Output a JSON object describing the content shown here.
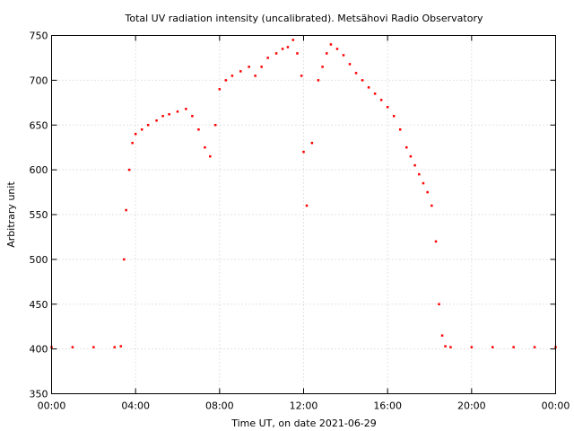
{
  "chart_data": {
    "type": "scatter",
    "title": "Total UV radiation intensity (uncalibrated). Metsähovi Radio Observatory",
    "xlabel": "Time UT, on date 2021-06-29",
    "ylabel": "Arbitrary unit",
    "xlim": [
      0,
      24
    ],
    "ylim": [
      350,
      750
    ],
    "grid": true,
    "x_ticks": [
      {
        "value": 0,
        "label": "00:00"
      },
      {
        "value": 4,
        "label": "04:00"
      },
      {
        "value": 8,
        "label": "08:00"
      },
      {
        "value": 12,
        "label": "12:00"
      },
      {
        "value": 16,
        "label": "16:00"
      },
      {
        "value": 20,
        "label": "20:00"
      },
      {
        "value": 24,
        "label": "00:00"
      }
    ],
    "y_ticks": [
      350,
      400,
      450,
      500,
      550,
      600,
      650,
      700,
      750
    ],
    "series": [
      {
        "color": "#ff0000",
        "x": [
          0.0,
          1.0,
          2.0,
          3.0,
          3.3,
          3.45,
          3.55,
          3.7,
          3.85,
          4.0,
          4.3,
          4.6,
          5.0,
          5.3,
          5.6,
          6.0,
          6.4,
          6.7,
          7.0,
          7.3,
          7.55,
          7.8,
          8.0,
          8.3,
          8.6,
          9.0,
          9.4,
          9.7,
          10.0,
          10.3,
          10.7,
          11.0,
          11.25,
          11.5,
          11.7,
          11.9,
          12.0,
          12.15,
          12.4,
          12.7,
          12.9,
          13.1,
          13.3,
          13.6,
          13.9,
          14.2,
          14.5,
          14.8,
          15.1,
          15.4,
          15.7,
          16.0,
          16.3,
          16.6,
          16.9,
          17.1,
          17.3,
          17.5,
          17.7,
          17.9,
          18.1,
          18.3,
          18.45,
          18.6,
          18.75,
          19.0,
          20.0,
          21.0,
          22.0,
          23.0,
          24.0
        ],
        "y": [
          402,
          402,
          402,
          402,
          403,
          500,
          555,
          600,
          630,
          640,
          645,
          650,
          655,
          660,
          662,
          665,
          668,
          660,
          645,
          625,
          615,
          650,
          690,
          700,
          705,
          710,
          715,
          705,
          715,
          725,
          730,
          735,
          737,
          745,
          730,
          705,
          620,
          560,
          630,
          700,
          715,
          730,
          740,
          735,
          728,
          718,
          708,
          700,
          692,
          685,
          678,
          670,
          660,
          645,
          625,
          615,
          605,
          595,
          585,
          575,
          560,
          520,
          450,
          415,
          403,
          402,
          402,
          402,
          402,
          402,
          402
        ]
      }
    ]
  }
}
